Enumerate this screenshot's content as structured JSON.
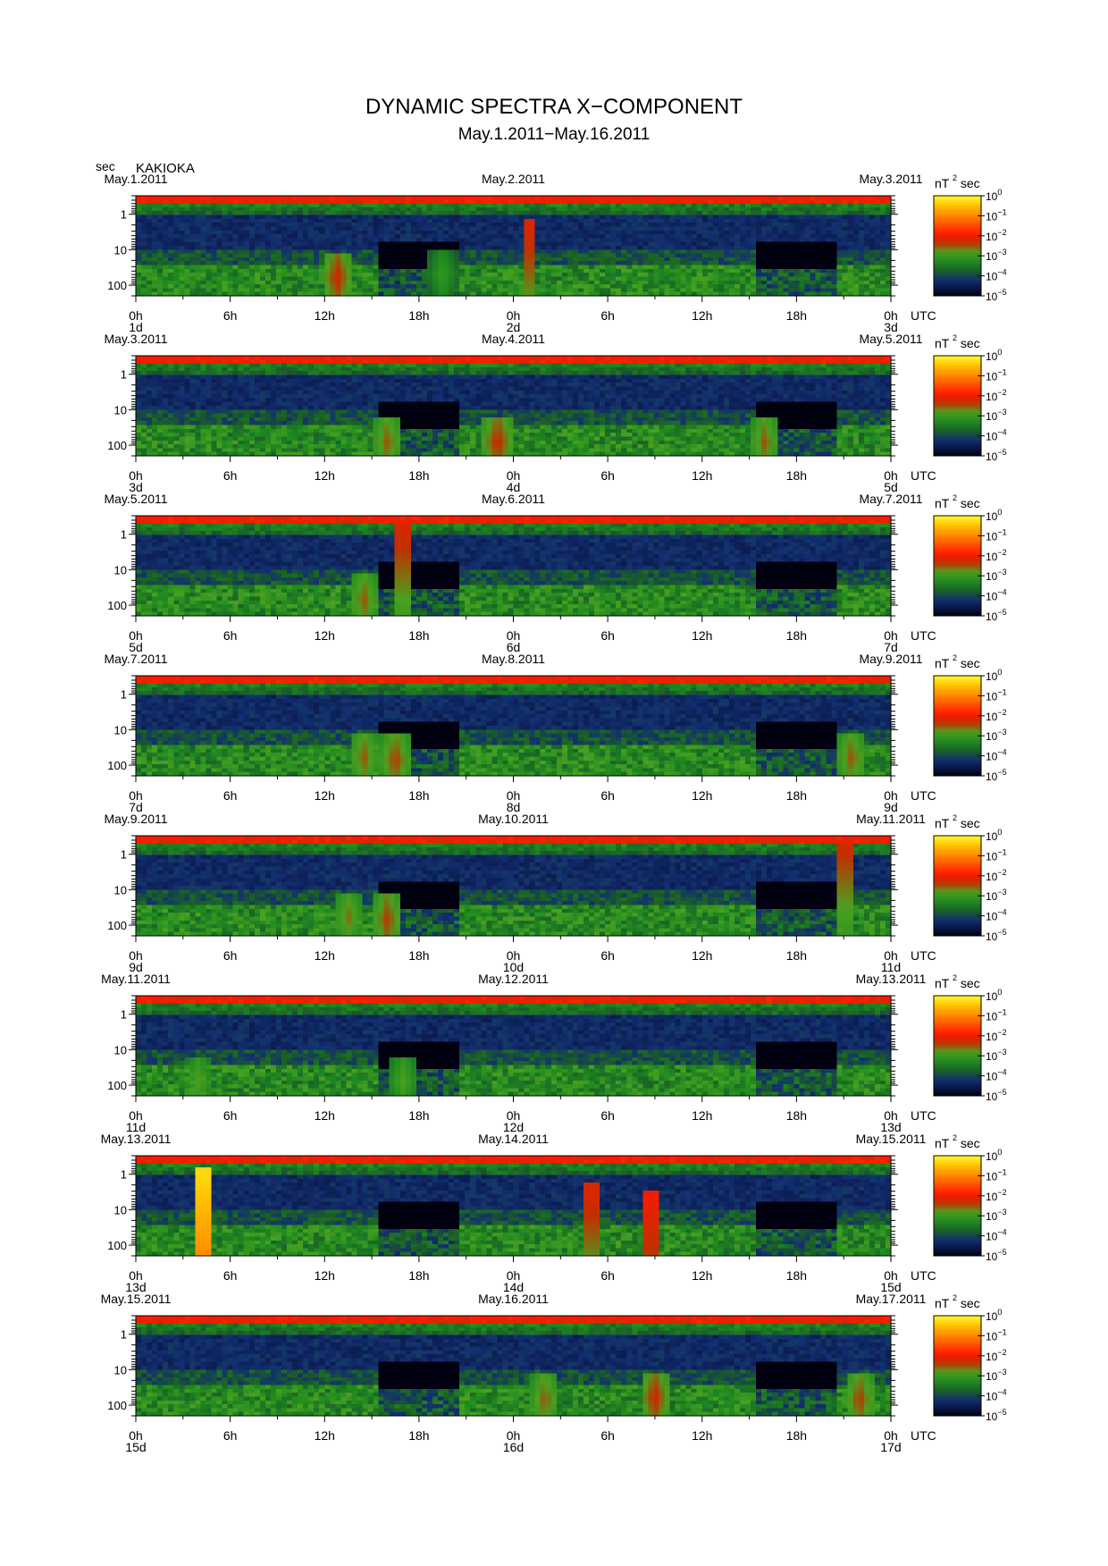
{
  "title": "DYNAMIC SPECTRA X−COMPONENT",
  "subtitle": "May.1.2011−May.16.2011",
  "y_unit": "sec",
  "station": "KAKIOKA",
  "colorbar": {
    "unit_base": "nT",
    "unit_exp": "2",
    "unit_tail": "sec",
    "ticks": [
      {
        "base": "10",
        "exp": "0"
      },
      {
        "base": "10",
        "exp": "−1"
      },
      {
        "base": "10",
        "exp": "−2"
      },
      {
        "base": "10",
        "exp": "−3"
      },
      {
        "base": "10",
        "exp": "−4"
      },
      {
        "base": "10",
        "exp": "−5"
      }
    ],
    "colors": [
      "#000010",
      "#0b1d5a",
      "#1c6b1c",
      "#2aa52a",
      "#d0d000",
      "#ff2000",
      "#ff8000",
      "#ffd000",
      "#ffff40"
    ]
  },
  "chart_data": {
    "type": "heatmap",
    "x_unit_label": "UTC",
    "y_axis": {
      "label": "sec",
      "scale": "log",
      "ticks": [
        "1",
        "10",
        "100"
      ]
    },
    "x_ticks": [
      "0h",
      "6h",
      "12h",
      "18h",
      "0h",
      "6h",
      "12h",
      "18h",
      "0h"
    ],
    "panels": [
      {
        "left_date": "May.1.2011",
        "mid_date": "May.2.2011",
        "right_date": "May.3.2011",
        "day_labels": [
          "1d",
          "2d",
          "3d"
        ],
        "events": [
          {
            "hour": 12.8,
            "period": 60,
            "level": -2.3
          },
          {
            "hour": 19.5,
            "period": 50,
            "level": -3
          },
          {
            "hour": 25,
            "period": 2,
            "level": -2.2
          }
        ]
      },
      {
        "left_date": "May.3.2011",
        "mid_date": "May.4.2011",
        "right_date": "May.5.2011",
        "day_labels": [
          "3d",
          "4d",
          "5d"
        ],
        "events": [
          {
            "hour": 16,
            "period": 80,
            "level": -2.5
          },
          {
            "hour": 23,
            "period": 80,
            "level": -2.3
          },
          {
            "hour": 40,
            "period": 80,
            "level": -2.5
          }
        ]
      },
      {
        "left_date": "May.5.2011",
        "mid_date": "May.6.2011",
        "right_date": "May.7.2011",
        "day_labels": [
          "5d",
          "6d",
          "7d"
        ],
        "events": [
          {
            "hour": 14.5,
            "period": 70,
            "level": -2.5
          },
          {
            "hour": 17,
            "period": 0.5,
            "level": -2.2
          }
        ]
      },
      {
        "left_date": "May.7.2011",
        "mid_date": "May.8.2011",
        "right_date": "May.9.2011",
        "day_labels": [
          "7d",
          "8d",
          "9d"
        ],
        "events": [
          {
            "hour": 14.5,
            "period": 60,
            "level": -2.5
          },
          {
            "hour": 16.5,
            "period": 70,
            "level": -2.4
          },
          {
            "hour": 45.5,
            "period": 60,
            "level": -2.5
          }
        ]
      },
      {
        "left_date": "May.9.2011",
        "mid_date": "May.10.2011",
        "right_date": "May.11.2011",
        "day_labels": [
          "9d",
          "10d",
          "11d"
        ],
        "events": [
          {
            "hour": 13.5,
            "period": 60,
            "level": -2.6
          },
          {
            "hour": 16,
            "period": 70,
            "level": -2.4
          },
          {
            "hour": 45,
            "period": 0.5,
            "level": -2.3
          }
        ]
      },
      {
        "left_date": "May.11.2011",
        "mid_date": "May.12.2011",
        "right_date": "May.13.2011",
        "day_labels": [
          "11d",
          "12d",
          "13d"
        ],
        "events": [
          {
            "hour": 4,
            "period": 80,
            "level": -2.8
          },
          {
            "hour": 17,
            "period": 80,
            "level": -2.8
          }
        ]
      },
      {
        "left_date": "May.13.2011",
        "mid_date": "May.14.2011",
        "right_date": "May.15.2011",
        "day_labels": [
          "13d",
          "14d",
          "15d"
        ],
        "events": [
          {
            "hour": 4.3,
            "period": 1,
            "level": -0.3
          },
          {
            "hour": 29,
            "period": 3,
            "level": -2.2
          },
          {
            "hour": 32.8,
            "period": 5,
            "level": -2
          }
        ]
      },
      {
        "left_date": "May.15.2011",
        "mid_date": "May.16.2011",
        "right_date": "May.17.2011",
        "day_labels": [
          "15d",
          "16d",
          "17d"
        ],
        "events": [
          {
            "hour": 26,
            "period": 70,
            "level": -2.5
          },
          {
            "hour": 33,
            "period": 60,
            "level": -2.3
          },
          {
            "hour": 46,
            "period": 70,
            "level": -2.4
          }
        ]
      }
    ]
  }
}
